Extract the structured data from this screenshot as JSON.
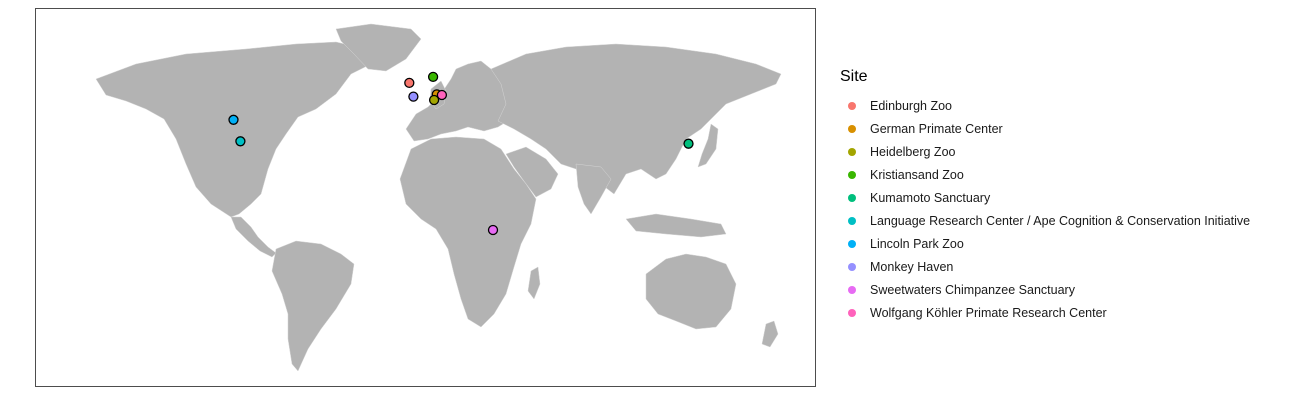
{
  "map": {
    "land_color": "#b3b3b3",
    "border_color": "#d4d4d4",
    "marker_outline": "#000000"
  },
  "legend": {
    "title": "Site"
  },
  "sites": [
    {
      "name": "Edinburgh Zoo",
      "color": "#F8766D",
      "lon": -3.27,
      "lat": 55.94
    },
    {
      "name": "German Primate Center",
      "color": "#D89000",
      "lon": 9.94,
      "lat": 51.54
    },
    {
      "name": "Heidelberg Zoo",
      "color": "#A3A500",
      "lon": 8.67,
      "lat": 49.42
    },
    {
      "name": "Kristiansand Zoo",
      "color": "#39B600",
      "lon": 8.15,
      "lat": 58.19
    },
    {
      "name": "Kumamoto Sanctuary",
      "color": "#00BF7D",
      "lon": 130.74,
      "lat": 32.81
    },
    {
      "name": "Language Research Center / Ape Cognition & Conservation Initiative",
      "color": "#00BFC4",
      "lon": -84.3,
      "lat": 33.75
    },
    {
      "name": "Lincoln Park Zoo",
      "color": "#00B0F6",
      "lon": -87.63,
      "lat": 41.92
    },
    {
      "name": "Monkey Haven",
      "color": "#9590FF",
      "lon": -1.3,
      "lat": 50.7
    },
    {
      "name": "Sweetwaters Chimpanzee Sanctuary",
      "color": "#E76BF3",
      "lon": 36.9,
      "lat": 0.02
    },
    {
      "name": "Wolfgang Köhler Primate Research Center",
      "color": "#FF62BC",
      "lon": 12.37,
      "lat": 51.34
    }
  ]
}
